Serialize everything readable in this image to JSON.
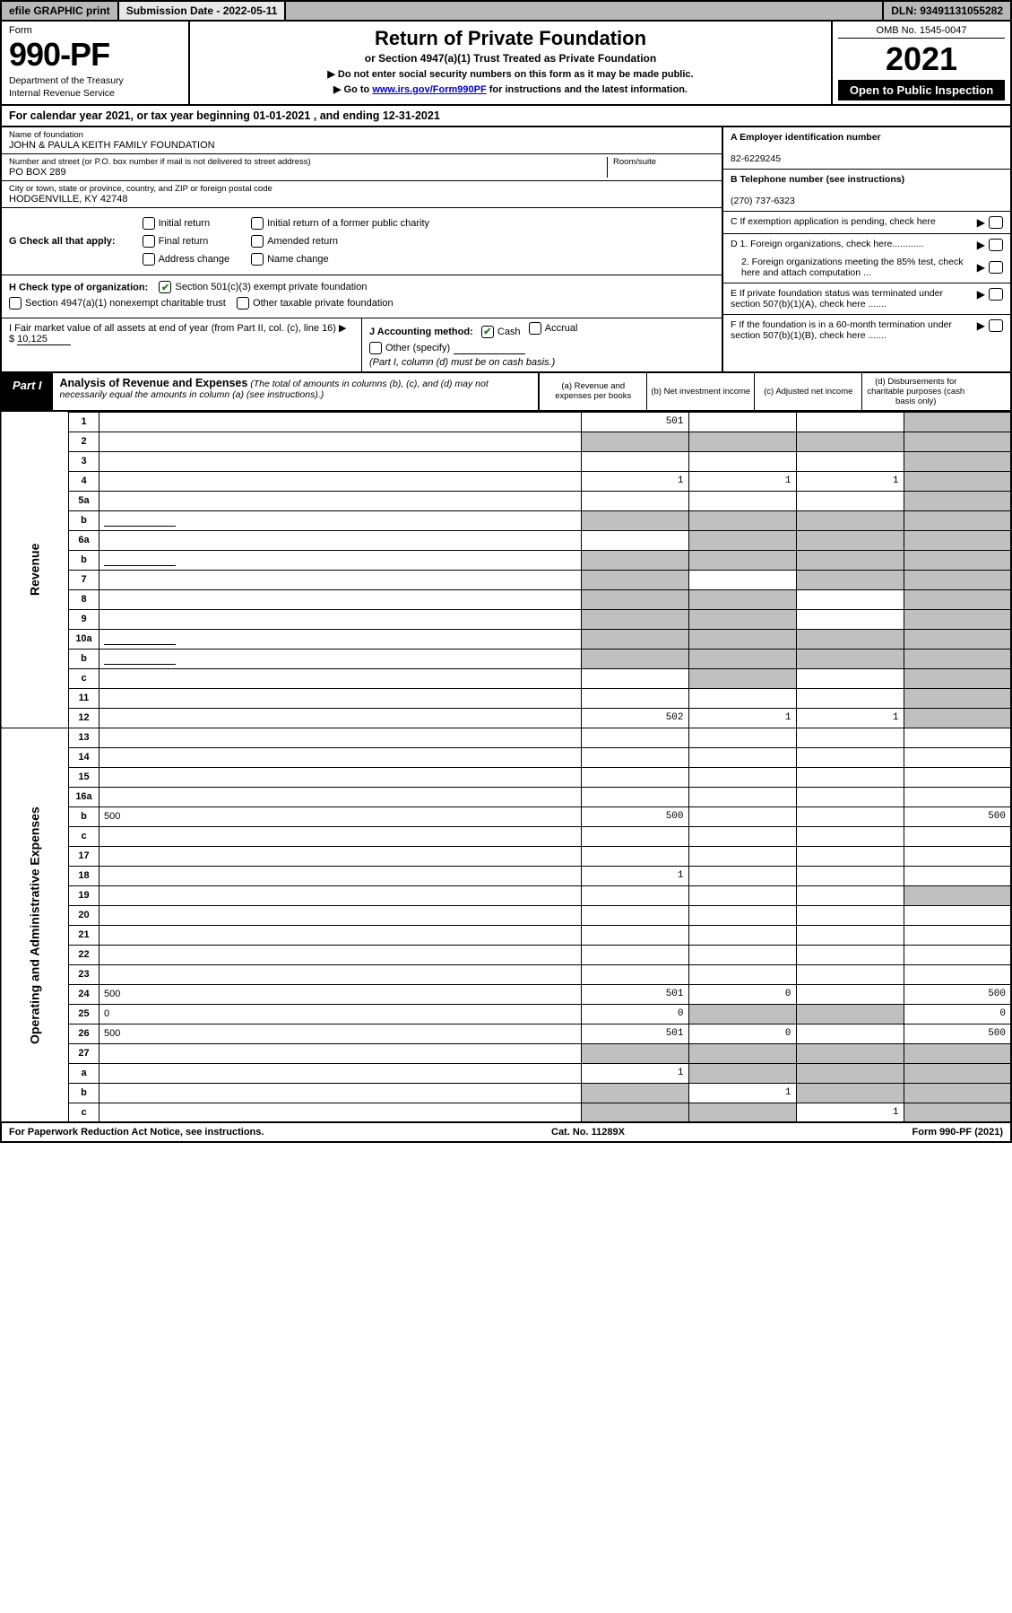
{
  "topbar": {
    "efile": "efile GRAPHIC print",
    "submission": "Submission Date - 2022-05-11",
    "dln": "DLN: 93491131055282"
  },
  "header": {
    "form_label": "Form",
    "form_number": "990-PF",
    "dept1": "Department of the Treasury",
    "dept2": "Internal Revenue Service",
    "title": "Return of Private Foundation",
    "subtitle": "or Section 4947(a)(1) Trust Treated as Private Foundation",
    "note1": "▶ Do not enter social security numbers on this form as it may be made public.",
    "note2_pre": "▶ Go to ",
    "note2_link": "www.irs.gov/Form990PF",
    "note2_post": " for instructions and the latest information.",
    "omb": "OMB No. 1545-0047",
    "year": "2021",
    "open": "Open to Public Inspection"
  },
  "cal_year": "For calendar year 2021, or tax year beginning 01-01-2021         , and ending 12-31-2021",
  "info": {
    "name_lbl": "Name of foundation",
    "name_val": "JOHN & PAULA KEITH FAMILY FOUNDATION",
    "addr_lbl": "Number and street (or P.O. box number if mail is not delivered to street address)",
    "addr_val": "PO BOX 289",
    "room_lbl": "Room/suite",
    "city_lbl": "City or town, state or province, country, and ZIP or foreign postal code",
    "city_val": "HODGENVILLE, KY  42748",
    "ein_lbl": "A Employer identification number",
    "ein_val": "82-6229245",
    "tel_lbl": "B Telephone number (see instructions)",
    "tel_val": "(270) 737-6323",
    "c_lbl": "C If exemption application is pending, check here",
    "d1_lbl": "D 1. Foreign organizations, check here............",
    "d2_lbl": "2. Foreign organizations meeting the 85% test, check here and attach computation ...",
    "e_lbl": "E  If private foundation status was terminated under section 507(b)(1)(A), check here .......",
    "f_lbl": "F  If the foundation is in a 60-month termination under section 507(b)(1)(B), check here .......",
    "g_lbl": "G Check all that apply:",
    "g_opts": [
      "Initial return",
      "Final return",
      "Address change",
      "Initial return of a former public charity",
      "Amended return",
      "Name change"
    ],
    "h_lbl": "H Check type of organization:",
    "h_opt1": "Section 501(c)(3) exempt private foundation",
    "h_opt2": "Section 4947(a)(1) nonexempt charitable trust",
    "h_opt3": "Other taxable private foundation",
    "i_lbl": "I Fair market value of all assets at end of year (from Part II, col. (c), line 16)",
    "i_val": "10,125",
    "j_lbl": "J Accounting method:",
    "j_cash": "Cash",
    "j_accrual": "Accrual",
    "j_other": "Other (specify)",
    "j_note": "(Part I, column (d) must be on cash basis.)"
  },
  "part1": {
    "label": "Part I",
    "title": "Analysis of Revenue and Expenses",
    "title_note": "(The total of amounts in columns (b), (c), and (d) may not necessarily equal the amounts in column (a) (see instructions).)",
    "col_a": "(a)   Revenue and expenses per books",
    "col_b": "(b)   Net investment income",
    "col_c": "(c)   Adjusted net income",
    "col_d": "(d)   Disbursements for charitable purposes (cash basis only)"
  },
  "sections": {
    "revenue": "Revenue",
    "expenses": "Operating and Administrative Expenses"
  },
  "lines": [
    {
      "n": "1",
      "d": "",
      "a": "501",
      "b": "",
      "c": "",
      "shade": [
        "d"
      ]
    },
    {
      "n": "2",
      "d": "",
      "a": "",
      "b": "",
      "c": "",
      "shade": [
        "a",
        "b",
        "c",
        "d"
      ],
      "allshade": true
    },
    {
      "n": "3",
      "d": "",
      "a": "",
      "b": "",
      "c": "",
      "shade": [
        "d"
      ]
    },
    {
      "n": "4",
      "d": "",
      "a": "1",
      "b": "1",
      "c": "1",
      "shade": [
        "d"
      ]
    },
    {
      "n": "5a",
      "d": "",
      "a": "",
      "b": "",
      "c": "",
      "shade": [
        "d"
      ]
    },
    {
      "n": "b",
      "d": "",
      "a": "",
      "b": "",
      "c": "",
      "shade": [
        "a",
        "b",
        "c",
        "d"
      ],
      "inline": true
    },
    {
      "n": "6a",
      "d": "",
      "a": "",
      "b": "",
      "c": "",
      "shade": [
        "b",
        "c",
        "d"
      ]
    },
    {
      "n": "b",
      "d": "",
      "a": "",
      "b": "",
      "c": "",
      "shade": [
        "a",
        "b",
        "c",
        "d"
      ],
      "inline": true
    },
    {
      "n": "7",
      "d": "",
      "a": "",
      "b": "",
      "c": "",
      "shade": [
        "a",
        "c",
        "d"
      ]
    },
    {
      "n": "8",
      "d": "",
      "a": "",
      "b": "",
      "c": "",
      "shade": [
        "a",
        "b",
        "d"
      ]
    },
    {
      "n": "9",
      "d": "",
      "a": "",
      "b": "",
      "c": "",
      "shade": [
        "a",
        "b",
        "d"
      ]
    },
    {
      "n": "10a",
      "d": "",
      "a": "",
      "b": "",
      "c": "",
      "shade": [
        "a",
        "b",
        "c",
        "d"
      ],
      "inline": true
    },
    {
      "n": "b",
      "d": "",
      "a": "",
      "b": "",
      "c": "",
      "shade": [
        "a",
        "b",
        "c",
        "d"
      ],
      "inline": true
    },
    {
      "n": "c",
      "d": "",
      "a": "",
      "b": "",
      "c": "",
      "shade": [
        "b",
        "d"
      ]
    },
    {
      "n": "11",
      "d": "",
      "a": "",
      "b": "",
      "c": "",
      "shade": [
        "d"
      ]
    },
    {
      "n": "12",
      "d": "",
      "a": "502",
      "b": "1",
      "c": "1",
      "shade": [
        "d"
      ]
    }
  ],
  "exp_lines": [
    {
      "n": "13",
      "d": "",
      "a": "",
      "b": "",
      "c": ""
    },
    {
      "n": "14",
      "d": "",
      "a": "",
      "b": "",
      "c": ""
    },
    {
      "n": "15",
      "d": "",
      "a": "",
      "b": "",
      "c": ""
    },
    {
      "n": "16a",
      "d": "",
      "a": "",
      "b": "",
      "c": ""
    },
    {
      "n": "b",
      "d": "500",
      "a": "500",
      "b": "",
      "c": ""
    },
    {
      "n": "c",
      "d": "",
      "a": "",
      "b": "",
      "c": ""
    },
    {
      "n": "17",
      "d": "",
      "a": "",
      "b": "",
      "c": ""
    },
    {
      "n": "18",
      "d": "",
      "a": "1",
      "b": "",
      "c": ""
    },
    {
      "n": "19",
      "d": "",
      "a": "",
      "b": "",
      "c": "",
      "shade": [
        "d"
      ]
    },
    {
      "n": "20",
      "d": "",
      "a": "",
      "b": "",
      "c": ""
    },
    {
      "n": "21",
      "d": "",
      "a": "",
      "b": "",
      "c": ""
    },
    {
      "n": "22",
      "d": "",
      "a": "",
      "b": "",
      "c": ""
    },
    {
      "n": "23",
      "d": "",
      "a": "",
      "b": "",
      "c": ""
    },
    {
      "n": "24",
      "d": "500",
      "a": "501",
      "b": "0",
      "c": ""
    },
    {
      "n": "25",
      "d": "0",
      "a": "0",
      "b": "",
      "c": "",
      "shade": [
        "b",
        "c"
      ]
    },
    {
      "n": "26",
      "d": "500",
      "a": "501",
      "b": "0",
      "c": ""
    },
    {
      "n": "27",
      "d": "",
      "a": "",
      "b": "",
      "c": "",
      "shade": [
        "a",
        "b",
        "c",
        "d"
      ]
    },
    {
      "n": "a",
      "d": "",
      "a": "1",
      "b": "",
      "c": "",
      "shade": [
        "b",
        "c",
        "d"
      ]
    },
    {
      "n": "b",
      "d": "",
      "a": "",
      "b": "1",
      "c": "",
      "shade": [
        "a",
        "c",
        "d"
      ]
    },
    {
      "n": "c",
      "d": "",
      "a": "",
      "b": "",
      "c": "1",
      "shade": [
        "a",
        "b",
        "d"
      ]
    }
  ],
  "footer": {
    "left": "For Paperwork Reduction Act Notice, see instructions.",
    "mid": "Cat. No. 11289X",
    "right": "Form 990-PF (2021)"
  },
  "colors": {
    "link": "#0000cc",
    "shade": "#c0c0c0",
    "check": "#2a7a2a"
  }
}
